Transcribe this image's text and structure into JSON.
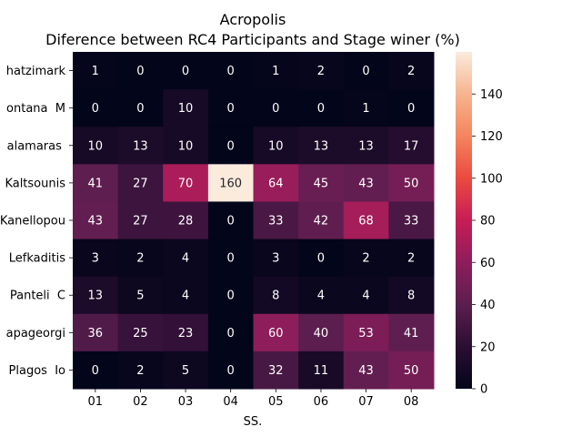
{
  "chart_data": {
    "type": "heatmap",
    "title": "Acropolis",
    "subtitle": "Diference between RC4 Participants and Stage winer (%)",
    "xlabel": "SS.",
    "ylabel": "",
    "x_categories": [
      "01",
      "02",
      "03",
      "04",
      "05",
      "06",
      "07",
      "08"
    ],
    "y_categories": [
      "Chatzimark",
      "Fontana  M",
      "Kalamaras ",
      "Kaltsounis",
      "Kanellopou",
      "Lefkaditis",
      "Panteli  C",
      "Papageorgi",
      "Plagos  Io"
    ],
    "y_categories_visible": [
      "hatzimark",
      "ontana  M",
      "alamaras ",
      "Kaltsounis",
      "Kanellopou",
      "Lefkaditis",
      "Panteli  C",
      "apageorgi",
      "Plagos  Io"
    ],
    "values": [
      [
        1,
        0,
        0,
        0,
        1,
        2,
        0,
        2
      ],
      [
        0,
        0,
        10,
        0,
        0,
        0,
        1,
        0
      ],
      [
        10,
        13,
        10,
        0,
        10,
        13,
        13,
        17
      ],
      [
        41,
        27,
        70,
        160,
        64,
        45,
        43,
        50
      ],
      [
        43,
        27,
        28,
        0,
        33,
        42,
        68,
        33
      ],
      [
        3,
        2,
        4,
        0,
        3,
        0,
        2,
        2
      ],
      [
        13,
        5,
        4,
        0,
        8,
        4,
        4,
        8
      ],
      [
        36,
        25,
        23,
        0,
        60,
        40,
        53,
        41
      ],
      [
        0,
        2,
        5,
        0,
        32,
        11,
        43,
        50
      ]
    ],
    "colorbar": {
      "min": 0,
      "max": 160,
      "ticks": [
        0,
        20,
        40,
        60,
        80,
        100,
        120,
        140
      ]
    },
    "colormap": [
      "#03051a",
      "#2b0e33",
      "#5b1e4f",
      "#8e1d5b",
      "#c71d56",
      "#eb4a3f",
      "#f4855f",
      "#f6b48e",
      "#faebdd"
    ],
    "grid": false
  }
}
